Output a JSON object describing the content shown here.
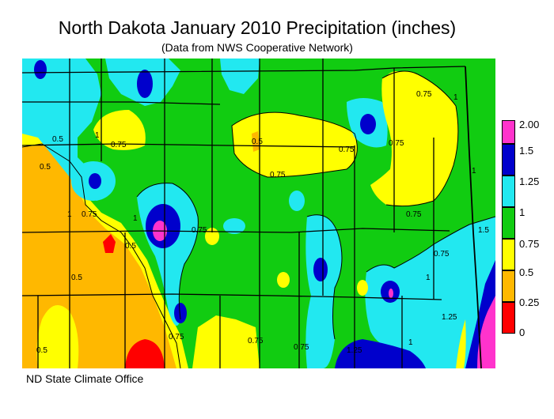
{
  "title": "North Dakota January 2010 Precipitation (inches)",
  "subtitle": "(Data from NWS Cooperative Network)",
  "credit": "ND State Climate Office",
  "legend": [
    {
      "label": "2.00",
      "color": "#ff33cc"
    },
    {
      "label": "1.5",
      "color": "#0000cc"
    },
    {
      "label": "1.25",
      "color": "#22e8f0"
    },
    {
      "label": "1",
      "color": "#11cc11"
    },
    {
      "label": "0.75",
      "color": "#ffff00"
    },
    {
      "label": "0.5",
      "color": "#ffb800"
    },
    {
      "label": "0.25",
      "color": "#ff0000"
    },
    {
      "label": "0",
      "color": ""
    }
  ],
  "contour_labels": [
    "0.75",
    "1",
    "0.75",
    "1",
    "0.5",
    "0.75",
    "0.75",
    "0.75",
    "1",
    "1",
    "0.5",
    "0.5",
    "0.75",
    "0.75",
    "1",
    "0.75",
    "0.5",
    "0.5",
    "0.5",
    "0.75",
    "0.75",
    "0.75",
    "1",
    "1",
    "1.25",
    "1.25",
    "1.5",
    "0.75"
  ]
}
